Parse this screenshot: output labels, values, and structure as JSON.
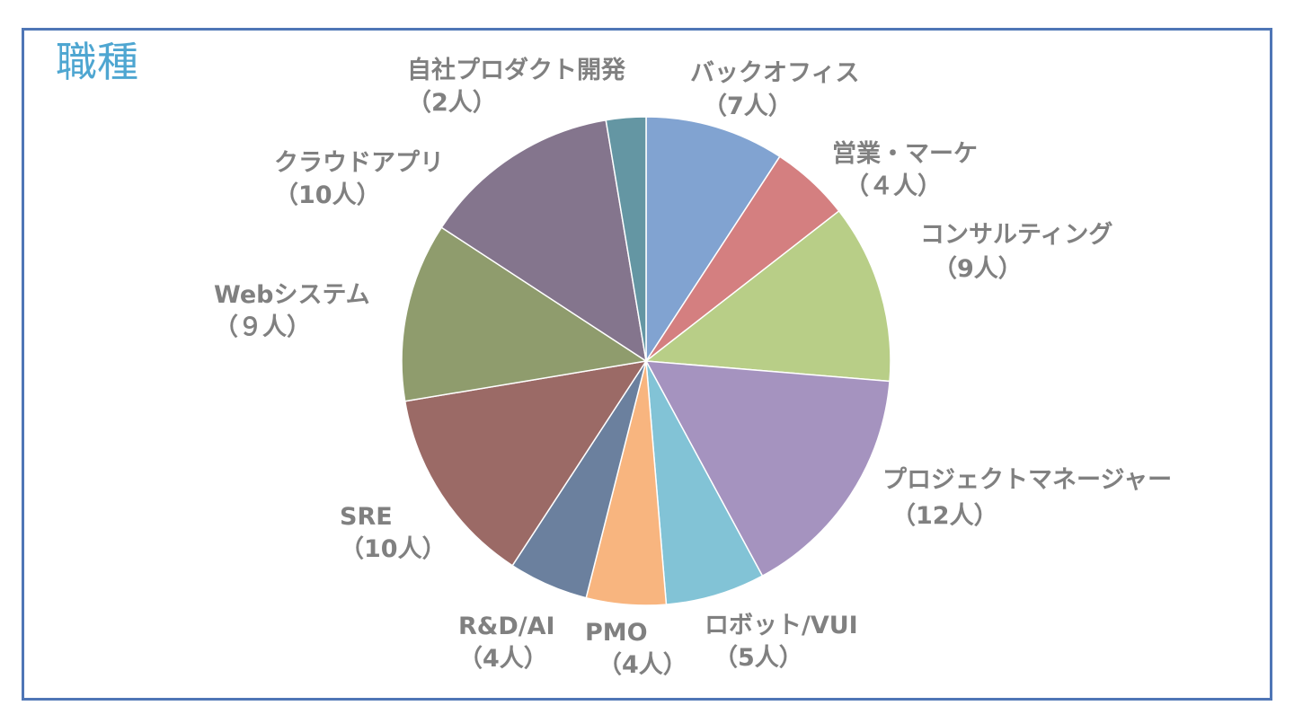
{
  "chart_data": {
    "type": "pie",
    "title": "職種",
    "slices": [
      {
        "name": "バックオフィス",
        "value": 7,
        "value_label": "（7人）",
        "color": "#81a3d1"
      },
      {
        "name": "営業・マーケ",
        "value": 4,
        "value_label": "（４人）",
        "color": "#d47f80"
      },
      {
        "name": "コンサルティング",
        "value": 9,
        "value_label": "（9人）",
        "color": "#b8ce87"
      },
      {
        "name": "プロジェクトマネージャー",
        "value": 12,
        "value_label": "（12人）",
        "color": "#a593bf"
      },
      {
        "name": "ロボット/VUI",
        "value": 5,
        "value_label": "（5人）",
        "color": "#82c3d6"
      },
      {
        "name": "PMO",
        "value": 4,
        "value_label": "（4人）",
        "color": "#f8b57f"
      },
      {
        "name": "R&D/AI",
        "value": 4,
        "value_label": "（4人）",
        "color": "#6b809e"
      },
      {
        "name": "SRE",
        "value": 10,
        "value_label": "（10人）",
        "color": "#9b6a66"
      },
      {
        "name": "Webシステム",
        "value": 9,
        "value_label": "（９人）",
        "color": "#8f9c6d"
      },
      {
        "name": "クラウドアプリ",
        "value": 10,
        "value_label": "（10人）",
        "color": "#84758d"
      },
      {
        "name": "自社プロダクト開発",
        "value": 2,
        "value_label": "（2人）",
        "color": "#6496a3"
      }
    ]
  }
}
